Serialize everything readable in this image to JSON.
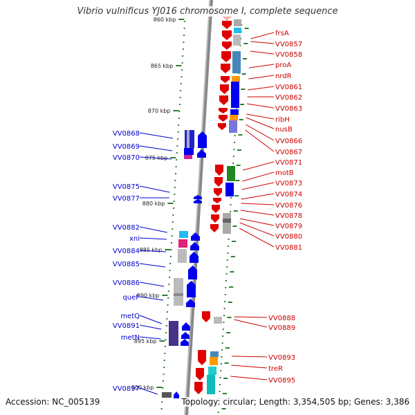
{
  "title": "Vibrio vulnificus YJ016 chromosome I, complete sequence",
  "footer": {
    "accession": "Accession: NC_005139",
    "stats": "Topology: circular; Length: 3,354,505 bp; Genes: 3,386"
  },
  "colors": {
    "forward_label": "#0000cc",
    "reverse_label": "#cc0000",
    "backbone": "#888888",
    "tick": "#2e7d32"
  },
  "coordinates": [
    "860 kbp",
    "865 kbp",
    "870 kbp",
    "875 kbp",
    "880 kbp",
    "885 kbp",
    "890 kbp",
    "895 kbp",
    "900 kbp"
  ],
  "genes_reverse": [
    "frsA",
    "VV0857",
    "VV0858",
    "proA",
    "nrdR",
    "VV0861",
    "VV0862",
    "VV0863",
    "ribH",
    "nusB",
    "VV0866",
    "VV0867",
    "VV0871",
    "motB",
    "VV0873",
    "VV0874",
    "VV0876",
    "VV0878",
    "VV0879",
    "VV0880",
    "VV0881",
    "VV0888",
    "VV0889",
    "VV0893",
    "treR",
    "VV0895"
  ],
  "genes_forward": [
    "VV0868",
    "VV0869",
    "VV0870",
    "VV0875",
    "VV0877",
    "VV0882",
    "xni",
    "VV0884",
    "VV0885",
    "VV0886",
    "queF",
    "metQ",
    "VV0891",
    "metN",
    "VV0897"
  ]
}
